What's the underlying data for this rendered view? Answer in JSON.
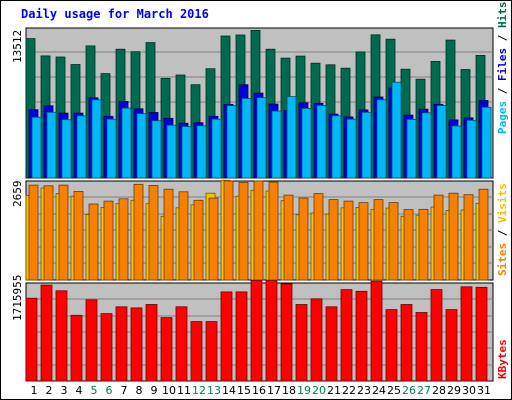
{
  "chart_data": {
    "type": "bar",
    "title": "Daily usage for March 2016",
    "categories": [
      "1",
      "2",
      "3",
      "4",
      "5",
      "6",
      "7",
      "8",
      "9",
      "10",
      "11",
      "12",
      "13",
      "14",
      "15",
      "16",
      "17",
      "18",
      "19",
      "20",
      "21",
      "22",
      "23",
      "24",
      "25",
      "26",
      "27",
      "28",
      "29",
      "30",
      "31"
    ],
    "weekend_days": [
      "5",
      "6",
      "12",
      "13",
      "19",
      "20",
      "26",
      "27"
    ],
    "panels": [
      {
        "id": "hits",
        "scale_label": "13512",
        "ymax": 13512,
        "ylabel": [
          "Pages",
          "Files",
          "Hits"
        ],
        "series": [
          {
            "name": "Hits",
            "color": "#006a4e",
            "values": [
              12560,
              11000,
              10900,
              10220,
              11900,
              9400,
              11600,
              11380,
              12200,
              8970,
              9280,
              8400,
              9850,
              12790,
              12880,
              13300,
              11600,
              10800,
              10980,
              10340,
              10200,
              9890,
              11360,
              12900,
              12500,
              9800,
              8900,
              10500,
              12420,
              9770,
              11040
            ]
          },
          {
            "name": "Files",
            "color": "#0000d8",
            "values": [
              6150,
              6500,
              5850,
              5850,
              7220,
              5560,
              6900,
              6230,
              5900,
              5380,
              4940,
              4980,
              5560,
              6630,
              8400,
              7650,
              6660,
              6080,
              6770,
              6720,
              5760,
              5500,
              6130,
              7300,
              8100,
              5670,
              6200,
              6640,
              5230,
              5420,
              6990
            ]
          },
          {
            "name": "Pages",
            "color": "#00b8f8",
            "values": [
              5480,
              5920,
              5250,
              5600,
              7040,
              5300,
              6300,
              5800,
              5160,
              4760,
              4640,
              4700,
              5300,
              6520,
              7160,
              7230,
              6030,
              7330,
              6270,
              6530,
              5600,
              5300,
              5920,
              7050,
              8630,
              5280,
              5870,
              6520,
              4680,
              5200,
              6370
            ]
          }
        ]
      },
      {
        "id": "visits",
        "scale_label": "2659",
        "ymax": 2659,
        "ylabel": [
          "Sites",
          "Visits"
        ],
        "series": [
          {
            "name": "Visits",
            "color": "#f8c000",
            "values": [
              2270,
              2470,
              2320,
              2250,
              1760,
              1950,
              2050,
              2140,
              2050,
              1710,
              1940,
              2020,
              2330,
              2680,
              2250,
              2410,
              2390,
              2130,
              1750,
              1800,
              1770,
              1940,
              1950,
              1900,
              1930,
              1710,
              1740,
              1960,
              1870,
              1880,
              2060
            ]
          },
          {
            "name": "Sites",
            "color": "#f88000",
            "values": [
              2550,
              2530,
              2550,
              2380,
              2040,
              2120,
              2180,
              2570,
              2540,
              2440,
              2370,
              2140,
              2200,
              2660,
              2620,
              2660,
              2630,
              2280,
              2200,
              2320,
              2160,
              2120,
              2080,
              2160,
              2080,
              1890,
              1900,
              2280,
              2330,
              2290,
              2440
            ]
          }
        ]
      },
      {
        "id": "kbytes",
        "scale_label": "1715955",
        "ymax": 1715955,
        "ylabel": [
          "KBytes"
        ],
        "series": [
          {
            "name": "KBytes",
            "color": "#ff0000",
            "values": [
              1450000,
              1680000,
              1580000,
              1150000,
              1420000,
              1180000,
              1300000,
              1280000,
              1340000,
              1110000,
              1300000,
              1040000,
              1040000,
              1560000,
              1560000,
              1760000,
              1760000,
              1700000,
              1340000,
              1440000,
              1300000,
              1600000,
              1570000,
              1750000,
              1250000,
              1340000,
              1200000,
              1600000,
              1250000,
              1650000,
              1640000
            ]
          }
        ]
      }
    ]
  },
  "colors": {
    "background": "#ffffff",
    "plot": "#c0c0c0",
    "grid": "#808080",
    "title": "#0000ff",
    "weekend": "#00805c",
    "weekday": "#000080"
  }
}
